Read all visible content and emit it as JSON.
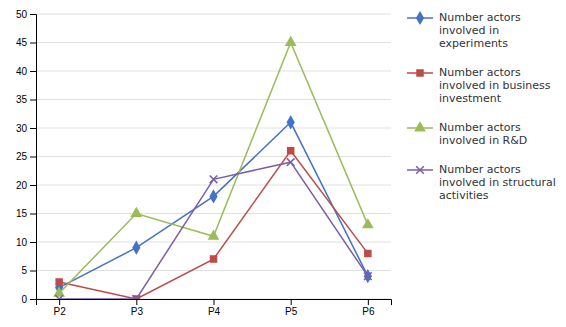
{
  "chart_data": {
    "type": "line",
    "categories": [
      "P2",
      "P3",
      "P4",
      "P5",
      "P6"
    ],
    "series": [
      {
        "name": "Number actors\ninvolved in\nexperiments",
        "color": "#4472C4",
        "marker": "diamond",
        "values": [
          2,
          9,
          18,
          31,
          4
        ]
      },
      {
        "name": "Number actors\ninvolved in business\ninvestment",
        "color": "#BE4B48",
        "marker": "square",
        "values": [
          3,
          0,
          7,
          26,
          8
        ]
      },
      {
        "name": "Number actors\ninvolved in R&D",
        "color": "#9BBB59",
        "marker": "triangle",
        "values": [
          1,
          15,
          11,
          45,
          13
        ]
      },
      {
        "name": "Number actors\ninvolved in structural\nactivities",
        "color": "#7B5EA7",
        "marker": "x",
        "values": [
          0,
          0,
          21,
          24,
          4
        ]
      }
    ],
    "ylim": [
      0,
      50
    ],
    "yticks": [
      0,
      5,
      10,
      15,
      20,
      25,
      30,
      35,
      40,
      45,
      50
    ],
    "grid": true,
    "legend": "right"
  }
}
